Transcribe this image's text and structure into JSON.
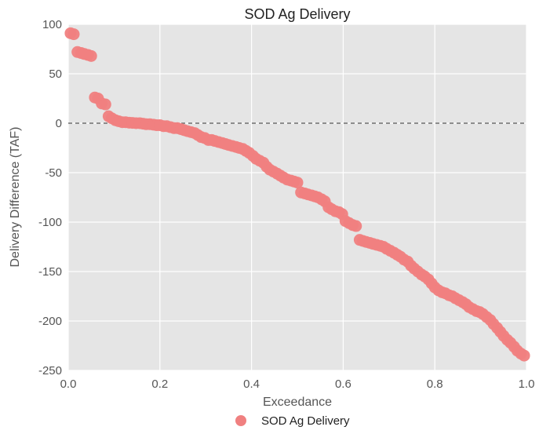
{
  "chart_data": {
    "type": "scatter",
    "title": "SOD Ag Delivery",
    "xlabel": "Exceedance",
    "ylabel": "Delivery Difference (TAF)",
    "xlim": [
      0.0,
      1.0
    ],
    "ylim": [
      -250,
      100
    ],
    "xticks": [
      "0.0",
      "0.2",
      "0.4",
      "0.6",
      "0.8",
      "1.0"
    ],
    "yticks": [
      "100",
      "50",
      "0",
      "-50",
      "-100",
      "-150",
      "-200",
      "-250"
    ],
    "reference_line": {
      "y": 0,
      "style": "dashed"
    },
    "grid": true,
    "legend": {
      "position": "bottom-center"
    },
    "series": [
      {
        "name": "SOD Ag Delivery",
        "color": "#f08080",
        "x": [
          0.005,
          0.012,
          0.02,
          0.028,
          0.035,
          0.043,
          0.05,
          0.058,
          0.065,
          0.073,
          0.081,
          0.088,
          0.095,
          0.103,
          0.11,
          0.118,
          0.125,
          0.133,
          0.14,
          0.148,
          0.156,
          0.163,
          0.17,
          0.178,
          0.186,
          0.193,
          0.2,
          0.208,
          0.215,
          0.223,
          0.231,
          0.238,
          0.246,
          0.253,
          0.26,
          0.268,
          0.276,
          0.283,
          0.29,
          0.298,
          0.306,
          0.313,
          0.32,
          0.328,
          0.336,
          0.343,
          0.35,
          0.358,
          0.366,
          0.373,
          0.381,
          0.388,
          0.395,
          0.403,
          0.41,
          0.418,
          0.426,
          0.433,
          0.44,
          0.448,
          0.456,
          0.463,
          0.47,
          0.478,
          0.486,
          0.493,
          0.5,
          0.508,
          0.516,
          0.523,
          0.531,
          0.538,
          0.545,
          0.553,
          0.56,
          0.568,
          0.575,
          0.583,
          0.591,
          0.598,
          0.605,
          0.613,
          0.621,
          0.628,
          0.636,
          0.643,
          0.65,
          0.658,
          0.665,
          0.673,
          0.681,
          0.688,
          0.695,
          0.703,
          0.711,
          0.718,
          0.725,
          0.733,
          0.741,
          0.748,
          0.755,
          0.763,
          0.771,
          0.778,
          0.786,
          0.793,
          0.8,
          0.808,
          0.816,
          0.823,
          0.831,
          0.838,
          0.845,
          0.853,
          0.861,
          0.868,
          0.875,
          0.883,
          0.891,
          0.898,
          0.905,
          0.913,
          0.921,
          0.928,
          0.936,
          0.943,
          0.95,
          0.958,
          0.965,
          0.973,
          0.98,
          0.988,
          0.995
        ],
        "y": [
          91,
          90,
          72,
          71,
          70,
          69,
          68,
          26,
          25,
          20,
          19,
          7,
          5,
          3,
          2,
          1,
          1,
          0.5,
          0.3,
          0,
          0,
          -0.5,
          -1,
          -1,
          -1.5,
          -2,
          -2,
          -3,
          -3,
          -4,
          -5,
          -5,
          -6,
          -7,
          -8,
          -9,
          -10,
          -12,
          -14,
          -15,
          -17,
          -17,
          -18,
          -19,
          -20,
          -21,
          -22,
          -23,
          -24,
          -25,
          -26,
          -28,
          -30,
          -33,
          -36,
          -38,
          -40,
          -44,
          -47,
          -49,
          -51,
          -53,
          -55,
          -57,
          -58,
          -59,
          -60,
          -70,
          -71,
          -72,
          -73,
          -74,
          -75,
          -77,
          -79,
          -85,
          -87,
          -89,
          -90,
          -92,
          -99,
          -101,
          -103,
          -104,
          -118,
          -119,
          -120,
          -121,
          -122,
          -123,
          -124,
          -125,
          -127,
          -129,
          -131,
          -133,
          -135,
          -138,
          -140,
          -144,
          -147,
          -150,
          -153,
          -155,
          -158,
          -162,
          -166,
          -169,
          -171,
          -172,
          -174,
          -175,
          -177,
          -179,
          -181,
          -183,
          -186,
          -188,
          -190,
          -191,
          -193,
          -196,
          -199,
          -203,
          -207,
          -211,
          -215,
          -219,
          -222,
          -226,
          -230,
          -233,
          -235
        ]
      }
    ]
  }
}
